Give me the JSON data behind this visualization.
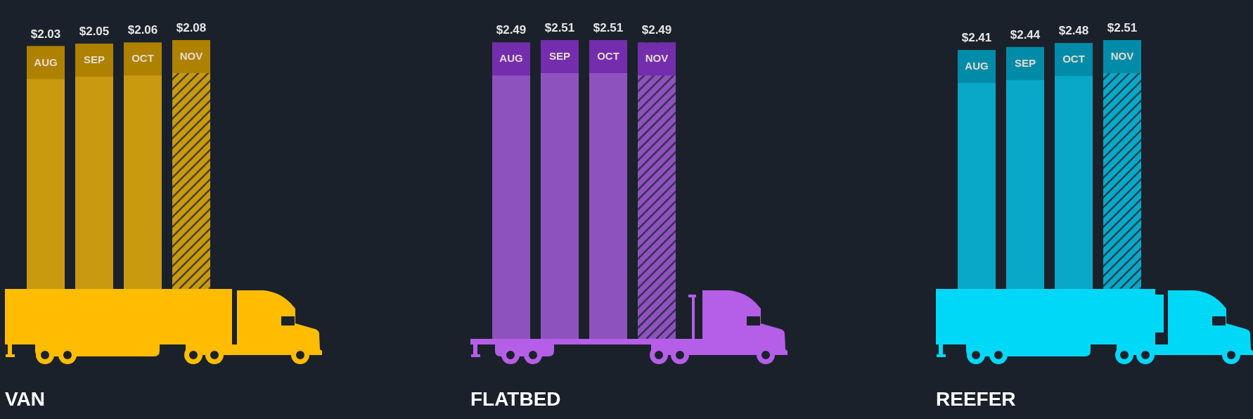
{
  "chart_data": [
    {
      "type": "bar",
      "title": "VAN",
      "categories": [
        "AUG",
        "SEP",
        "OCT",
        "NOV"
      ],
      "stacked": true,
      "series": [
        {
          "color": "#c99a10",
          "values": [
            2.03,
            2.05,
            2.06,
            null
          ],
          "value_labels": [
            "$2.03",
            "$2.05",
            "$2.06",
            null
          ]
        },
        {
          "color": "#c99a10",
          "values": [
            null,
            null,
            null,
            2.08
          ],
          "value_labels": [
            null,
            null,
            null,
            "$2.08"
          ],
          "line_style": "dashed"
        }
      ]
    },
    {
      "type": "bar",
      "title": "FLATBED",
      "categories": [
        "AUG",
        "SEP",
        "OCT",
        "NOV"
      ],
      "stacked": true,
      "series": [
        {
          "color": "#8e52be",
          "values": [
            2.49,
            2.51,
            2.51,
            null
          ],
          "value_labels": [
            "$2.49",
            "$2.51",
            "$2.51",
            null
          ]
        },
        {
          "color": "#8e52be",
          "values": [
            null,
            null,
            null,
            2.49
          ],
          "value_labels": [
            null,
            null,
            null,
            "$2.49"
          ],
          "line_style": "dashed"
        }
      ]
    },
    {
      "type": "bar",
      "title": "REEFER",
      "categories": [
        "AUG",
        "SEP",
        "OCT",
        "NOV"
      ],
      "stacked": true,
      "series": [
        {
          "color": "#0aa8c8",
          "values": [
            2.41,
            2.44,
            2.48,
            null
          ],
          "value_labels": [
            "$2.41",
            "$2.44",
            "$2.48",
            null
          ]
        },
        {
          "color": "#0aa8c8",
          "values": [
            null,
            null,
            null,
            2.51
          ],
          "value_labels": [
            null,
            null,
            null,
            "$2.51"
          ],
          "line_style": "dashed"
        }
      ]
    }
  ]
}
